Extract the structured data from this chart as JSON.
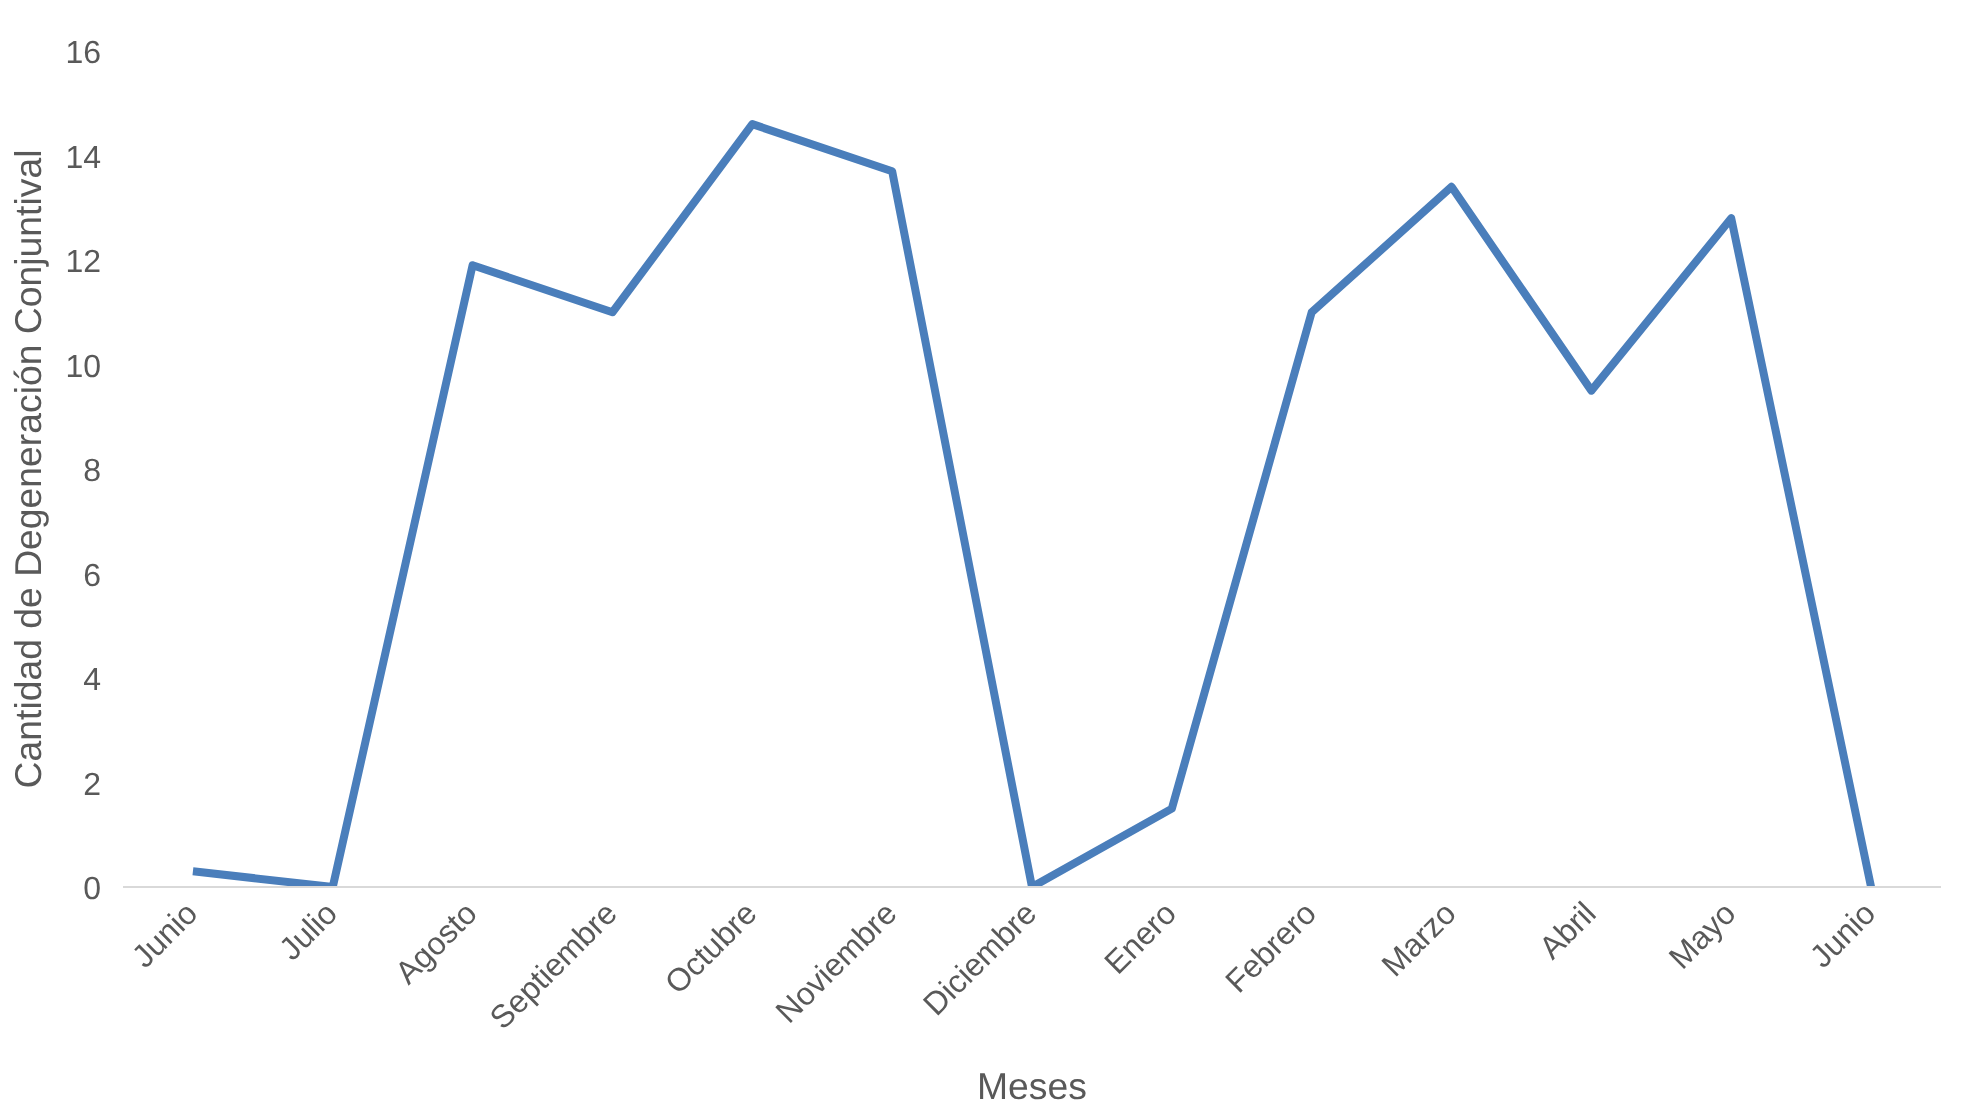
{
  "chart_data": {
    "type": "line",
    "xlabel": "Meses",
    "ylabel": "Cantidad de Degeneración Conjuntival",
    "categories": [
      "Junio",
      "Julio",
      "Agosto",
      "Septiembre",
      "Octubre",
      "Noviembre",
      "Diciembre",
      "Enero",
      "Febrero",
      "Marzo",
      "Abril",
      "Mayo",
      "Junio"
    ],
    "series": [
      {
        "color": "#4a7ebb",
        "values": [
          0.3,
          0,
          11.9,
          11,
          14.6,
          13.7,
          0,
          1.5,
          11,
          13.4,
          9.5,
          12.8,
          0
        ]
      }
    ],
    "ylim": [
      0,
      16
    ],
    "yticks": [
      0,
      2,
      4,
      6,
      8,
      10,
      12,
      14,
      16
    ],
    "grid": false,
    "marker": "none",
    "line_style": "solid"
  }
}
